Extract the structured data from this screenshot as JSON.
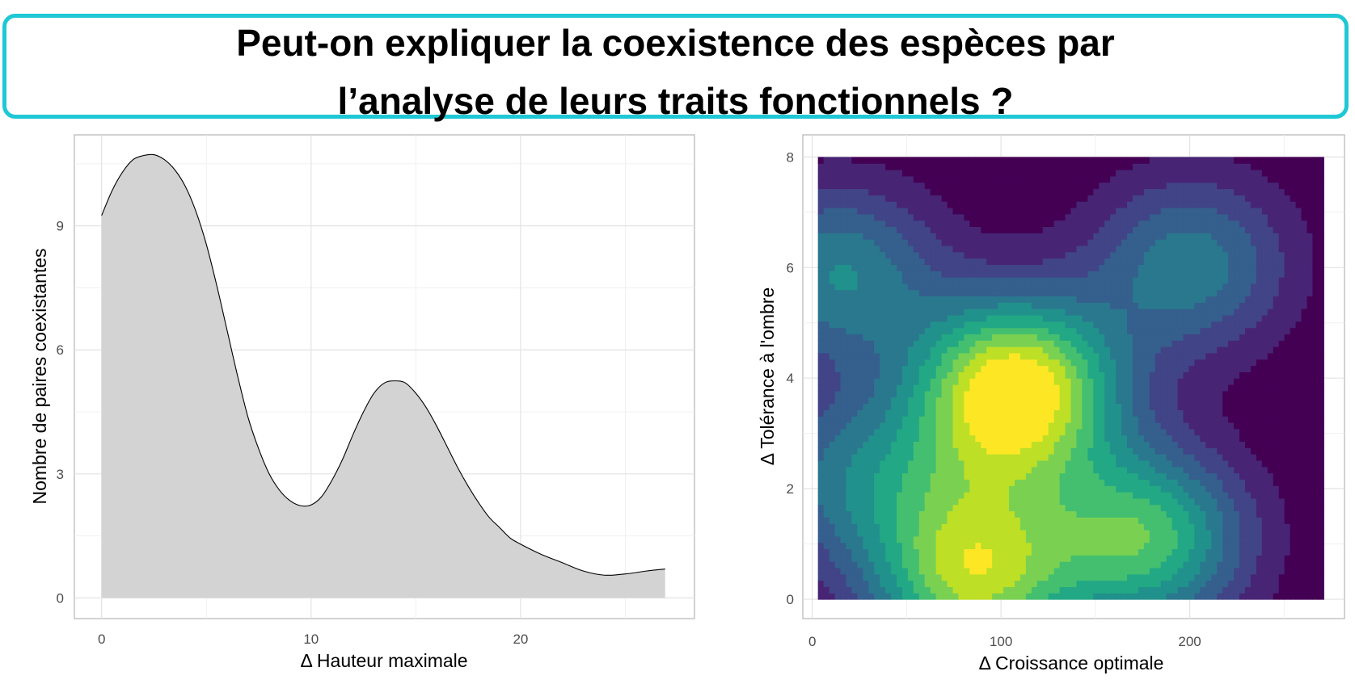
{
  "title": {
    "line1": "Peut-on expliquer la coexistence des espèces par",
    "line2": "l’analyse de leurs traits fonctionnels ?"
  },
  "colors": {
    "title_border": "#1ec8d4",
    "density_fill": "#d3d3d3",
    "density_line": "#000000"
  },
  "chart_data": [
    {
      "type": "area",
      "title": "",
      "xlabel": "Δ Hauteur maximale",
      "ylabel": "Nombre de paires coexistantes",
      "xlim": [
        -1.3,
        28.3
      ],
      "ylim": [
        -0.5,
        11.2
      ],
      "x_ticks": [
        0,
        10,
        20
      ],
      "y_ticks": [
        0,
        3,
        6,
        9
      ],
      "grid": true,
      "series": [
        {
          "x": [
            0,
            0.5,
            1,
            1.5,
            2,
            2.5,
            3,
            3.5,
            4,
            4.5,
            5,
            5.5,
            6,
            6.5,
            7,
            7.5,
            8,
            8.5,
            9,
            9.5,
            10,
            10.5,
            11,
            11.5,
            12,
            12.5,
            13,
            13.5,
            14,
            14.5,
            15,
            15.5,
            16,
            16.5,
            17,
            17.5,
            18,
            18.5,
            19,
            19.5,
            20,
            21,
            22,
            23,
            24,
            25,
            26,
            26.9
          ],
          "y": [
            9.25,
            9.85,
            10.3,
            10.6,
            10.7,
            10.72,
            10.6,
            10.35,
            9.95,
            9.35,
            8.55,
            7.55,
            6.45,
            5.35,
            4.35,
            3.6,
            3.0,
            2.6,
            2.35,
            2.23,
            2.25,
            2.45,
            2.85,
            3.35,
            3.95,
            4.5,
            4.95,
            5.2,
            5.25,
            5.2,
            4.95,
            4.6,
            4.15,
            3.65,
            3.15,
            2.7,
            2.3,
            1.95,
            1.7,
            1.45,
            1.3,
            1.05,
            0.85,
            0.65,
            0.55,
            0.58,
            0.65,
            0.7
          ]
        }
      ]
    },
    {
      "type": "heatmap",
      "title": "",
      "xlabel": "Δ Croissance optimale",
      "ylabel": "Δ Tolérance à l'ombre",
      "xlim": [
        -5,
        282
      ],
      "ylim": [
        -0.35,
        8.4
      ],
      "x_ticks": [
        0,
        100,
        200
      ],
      "y_ticks": [
        0,
        2,
        4,
        6,
        8
      ],
      "data_extent": {
        "x": [
          3,
          271
        ],
        "y": [
          0,
          8
        ]
      },
      "grid": true,
      "palette": [
        "#440154",
        "#482475",
        "#414487",
        "#355f8d",
        "#2a788e",
        "#21918c",
        "#22a884",
        "#44bf70",
        "#7ad151",
        "#bddf26",
        "#fde725"
      ],
      "peaks": [
        {
          "x": 108,
          "y": 3.8,
          "height": 1.0
        },
        {
          "x": 85,
          "y": 0.25,
          "height": 0.72
        },
        {
          "x": 176,
          "y": 1.1,
          "height": 0.68
        },
        {
          "x": 200,
          "y": 6.05,
          "height": 0.42
        },
        {
          "x": 14,
          "y": 5.9,
          "height": 0.45
        },
        {
          "x": 20,
          "y": 2.2,
          "height": 0.35
        },
        {
          "x": 85,
          "y": 1.8,
          "height": 0.25
        }
      ]
    }
  ]
}
